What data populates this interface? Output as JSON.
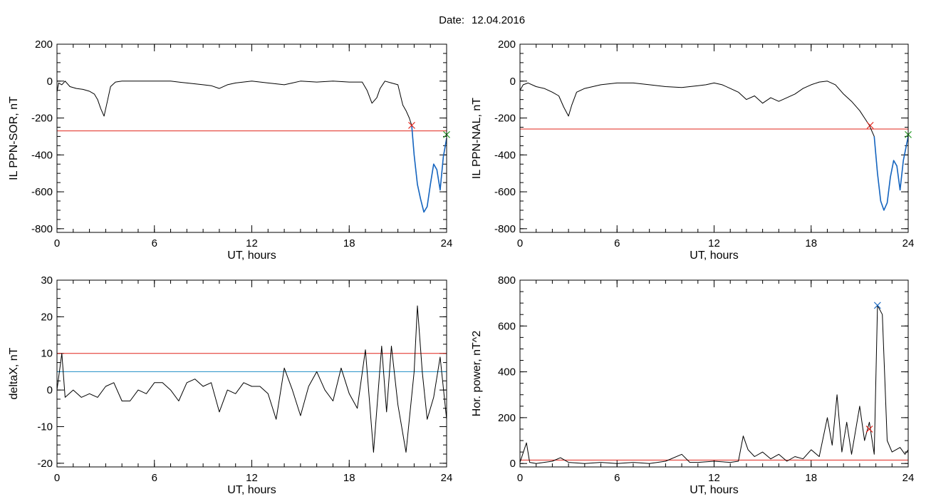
{
  "figure": {
    "title_prefix": "Date:",
    "date": "12.04.2016"
  },
  "colors": {
    "line": "#000000",
    "threshold_red": "#e0241b",
    "threshold_blue": "#1f8fc4",
    "highlight_blue": "#1565c0",
    "marker_green": "#2e9e2e"
  },
  "chart_data": [
    {
      "type": "line",
      "xlabel": "UT, hours",
      "ylabel": "IL PPN-SOR, nT",
      "xlim": [
        0,
        24
      ],
      "ylim": [
        -820,
        200
      ],
      "xticks": [
        0,
        6,
        12,
        18,
        24
      ],
      "yticks": [
        -800,
        -600,
        -400,
        -200,
        0,
        200
      ],
      "series": [
        {
          "points": [
            [
              0,
              -60
            ],
            [
              0.1,
              -10
            ],
            [
              0.3,
              -20
            ],
            [
              0.5,
              0
            ],
            [
              0.8,
              -30
            ],
            [
              1.2,
              -40
            ],
            [
              1.6,
              -45
            ],
            [
              2.0,
              -55
            ],
            [
              2.3,
              -70
            ],
            [
              2.5,
              -100
            ],
            [
              2.7,
              -150
            ],
            [
              2.9,
              -190
            ],
            [
              3.1,
              -110
            ],
            [
              3.3,
              -30
            ],
            [
              3.6,
              -5
            ],
            [
              4,
              0
            ],
            [
              5,
              0
            ],
            [
              6,
              0
            ],
            [
              7,
              0
            ],
            [
              8,
              -10
            ],
            [
              9,
              -20
            ],
            [
              9.5,
              -25
            ],
            [
              10,
              -40
            ],
            [
              10.5,
              -20
            ],
            [
              11,
              -10
            ],
            [
              12,
              0
            ],
            [
              13,
              -10
            ],
            [
              13.5,
              -15
            ],
            [
              14,
              -20
            ],
            [
              14.5,
              -10
            ],
            [
              15,
              0
            ],
            [
              16,
              -5
            ],
            [
              17,
              0
            ],
            [
              18,
              -5
            ],
            [
              18.8,
              -5
            ],
            [
              19.1,
              -50
            ],
            [
              19.4,
              -120
            ],
            [
              19.7,
              -90
            ],
            [
              19.9,
              -40
            ],
            [
              20.2,
              0
            ],
            [
              20.6,
              -10
            ],
            [
              21.0,
              -20
            ],
            [
              21.3,
              -130
            ],
            [
              21.5,
              -160
            ],
            [
              21.7,
              -200
            ],
            [
              21.85,
              -240
            ],
            [
              22.0,
              -400
            ],
            [
              22.2,
              -560
            ],
            [
              22.4,
              -640
            ],
            [
              22.6,
              -710
            ],
            [
              22.8,
              -680
            ],
            [
              23.0,
              -560
            ],
            [
              23.2,
              -450
            ],
            [
              23.4,
              -480
            ],
            [
              23.6,
              -590
            ],
            [
              23.8,
              -410
            ],
            [
              24.0,
              -310
            ]
          ],
          "highlight_from": 21.85
        }
      ],
      "threshold": {
        "y": -270,
        "color": "#e0241b"
      },
      "markers": [
        {
          "x": 21.85,
          "y": -240,
          "shape": "x",
          "color": "#e0241b"
        },
        {
          "x": 24.0,
          "y": -290,
          "shape": "x",
          "color": "#2e9e2e"
        }
      ]
    },
    {
      "type": "line",
      "xlabel": "UT, hours",
      "ylabel": "IL PPN-NAL, nT",
      "xlim": [
        0,
        24
      ],
      "ylim": [
        -820,
        200
      ],
      "xticks": [
        0,
        6,
        12,
        18,
        24
      ],
      "yticks": [
        -800,
        -600,
        -400,
        -200,
        0,
        200
      ],
      "series": [
        {
          "points": [
            [
              0,
              -50
            ],
            [
              0.2,
              -20
            ],
            [
              0.5,
              -10
            ],
            [
              1.0,
              -30
            ],
            [
              1.5,
              -40
            ],
            [
              2.0,
              -60
            ],
            [
              2.4,
              -80
            ],
            [
              2.7,
              -140
            ],
            [
              3.0,
              -190
            ],
            [
              3.2,
              -130
            ],
            [
              3.5,
              -60
            ],
            [
              4,
              -40
            ],
            [
              4.5,
              -30
            ],
            [
              5,
              -20
            ],
            [
              5.5,
              -15
            ],
            [
              6,
              -10
            ],
            [
              7,
              -10
            ],
            [
              8,
              -20
            ],
            [
              9,
              -30
            ],
            [
              10,
              -35
            ],
            [
              11,
              -25
            ],
            [
              11.5,
              -20
            ],
            [
              12,
              -10
            ],
            [
              12.5,
              -20
            ],
            [
              13,
              -40
            ],
            [
              13.5,
              -60
            ],
            [
              14,
              -100
            ],
            [
              14.5,
              -80
            ],
            [
              15,
              -120
            ],
            [
              15.5,
              -90
            ],
            [
              16,
              -110
            ],
            [
              16.5,
              -90
            ],
            [
              17,
              -70
            ],
            [
              17.5,
              -40
            ],
            [
              18,
              -20
            ],
            [
              18.5,
              -5
            ],
            [
              19,
              0
            ],
            [
              19.5,
              -20
            ],
            [
              20,
              -70
            ],
            [
              20.5,
              -110
            ],
            [
              21,
              -160
            ],
            [
              21.3,
              -200
            ],
            [
              21.6,
              -240
            ],
            [
              21.9,
              -300
            ],
            [
              22.1,
              -500
            ],
            [
              22.3,
              -650
            ],
            [
              22.5,
              -700
            ],
            [
              22.7,
              -660
            ],
            [
              22.9,
              -520
            ],
            [
              23.1,
              -430
            ],
            [
              23.3,
              -460
            ],
            [
              23.5,
              -590
            ],
            [
              23.7,
              -430
            ],
            [
              24.0,
              -300
            ]
          ],
          "highlight_from": 21.65
        }
      ],
      "threshold": {
        "y": -260,
        "color": "#e0241b"
      },
      "markers": [
        {
          "x": 21.65,
          "y": -240,
          "shape": "x",
          "color": "#e0241b"
        },
        {
          "x": 24.0,
          "y": -290,
          "shape": "x",
          "color": "#2e9e2e"
        }
      ]
    },
    {
      "type": "line",
      "xlabel": "UT, hours",
      "ylabel": "deltaX, nT",
      "xlim": [
        0,
        24
      ],
      "ylim": [
        -21,
        30
      ],
      "xticks": [
        0,
        6,
        12,
        18,
        24
      ],
      "yticks": [
        -20,
        -10,
        0,
        10,
        20,
        30
      ],
      "series": [
        {
          "points": [
            [
              0,
              0
            ],
            [
              0.3,
              10
            ],
            [
              0.5,
              -2
            ],
            [
              1,
              0
            ],
            [
              1.5,
              -2
            ],
            [
              2,
              -1
            ],
            [
              2.5,
              -2
            ],
            [
              3,
              1
            ],
            [
              3.5,
              2
            ],
            [
              4,
              -3
            ],
            [
              4.5,
              -3
            ],
            [
              5,
              0
            ],
            [
              5.5,
              -1
            ],
            [
              6,
              2
            ],
            [
              6.5,
              2
            ],
            [
              7,
              0
            ],
            [
              7.5,
              -3
            ],
            [
              8,
              2
            ],
            [
              8.5,
              3
            ],
            [
              9,
              1
            ],
            [
              9.5,
              2
            ],
            [
              10,
              -6
            ],
            [
              10.5,
              0
            ],
            [
              11,
              -1
            ],
            [
              11.5,
              2
            ],
            [
              12,
              1
            ],
            [
              12.5,
              1
            ],
            [
              13,
              -1
            ],
            [
              13.5,
              -8
            ],
            [
              14,
              6
            ],
            [
              14.5,
              0
            ],
            [
              15,
              -7
            ],
            [
              15.5,
              1
            ],
            [
              16,
              5
            ],
            [
              16.5,
              0
            ],
            [
              17,
              -3
            ],
            [
              17.5,
              6
            ],
            [
              18,
              -1
            ],
            [
              18.5,
              -5
            ],
            [
              19,
              11
            ],
            [
              19.5,
              -17
            ],
            [
              20,
              12
            ],
            [
              20.3,
              -6
            ],
            [
              20.6,
              12
            ],
            [
              21,
              -4
            ],
            [
              21.5,
              -17
            ],
            [
              22,
              5
            ],
            [
              22.2,
              23
            ],
            [
              22.5,
              5
            ],
            [
              22.8,
              -8
            ],
            [
              23.2,
              -2
            ],
            [
              23.6,
              9
            ],
            [
              24,
              -8
            ]
          ]
        }
      ],
      "thresholds": [
        {
          "y": 10,
          "color": "#e0241b"
        },
        {
          "y": 5,
          "color": "#1f8fc4"
        }
      ]
    },
    {
      "type": "line",
      "xlabel": "UT, hours",
      "ylabel": "Hor. power, nT^2",
      "xlim": [
        0,
        24
      ],
      "ylim": [
        -15,
        800
      ],
      "xticks": [
        0,
        6,
        12,
        18,
        24
      ],
      "yticks": [
        0,
        200,
        400,
        600,
        800
      ],
      "series": [
        {
          "points": [
            [
              0,
              5
            ],
            [
              0.4,
              90
            ],
            [
              0.6,
              5
            ],
            [
              1,
              0
            ],
            [
              2,
              10
            ],
            [
              2.5,
              25
            ],
            [
              3,
              5
            ],
            [
              4,
              0
            ],
            [
              5,
              5
            ],
            [
              6,
              0
            ],
            [
              7,
              5
            ],
            [
              8,
              0
            ],
            [
              9,
              10
            ],
            [
              10,
              40
            ],
            [
              10.5,
              5
            ],
            [
              11,
              5
            ],
            [
              12,
              10
            ],
            [
              13,
              5
            ],
            [
              13.5,
              10
            ],
            [
              13.8,
              120
            ],
            [
              14.1,
              60
            ],
            [
              14.5,
              30
            ],
            [
              15,
              50
            ],
            [
              15.5,
              20
            ],
            [
              16,
              40
            ],
            [
              16.5,
              10
            ],
            [
              17,
              30
            ],
            [
              17.5,
              20
            ],
            [
              18,
              60
            ],
            [
              18.5,
              30
            ],
            [
              19,
              200
            ],
            [
              19.3,
              80
            ],
            [
              19.6,
              300
            ],
            [
              19.9,
              50
            ],
            [
              20.2,
              180
            ],
            [
              20.5,
              40
            ],
            [
              21,
              250
            ],
            [
              21.3,
              100
            ],
            [
              21.6,
              180
            ],
            [
              21.9,
              40
            ],
            [
              22.1,
              690
            ],
            [
              22.4,
              650
            ],
            [
              22.7,
              100
            ],
            [
              23,
              50
            ],
            [
              23.5,
              70
            ],
            [
              23.8,
              40
            ],
            [
              24,
              60
            ]
          ]
        }
      ],
      "threshold": {
        "y": 15,
        "color": "#e0241b"
      },
      "markers": [
        {
          "x": 21.6,
          "y": 150,
          "shape": "x",
          "color": "#e0241b"
        },
        {
          "x": 22.1,
          "y": 690,
          "shape": "x",
          "color": "#1565c0"
        }
      ]
    }
  ]
}
